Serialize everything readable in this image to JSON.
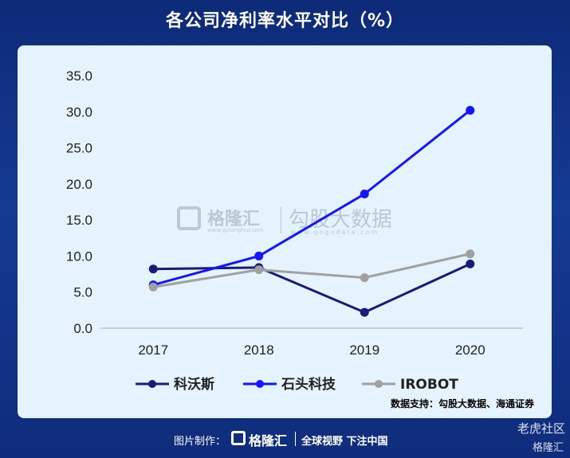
{
  "header": {
    "title": "各公司净利率水平对比（%）"
  },
  "chart_data": {
    "type": "line",
    "title": "各公司净利率水平对比（%）",
    "categories": [
      "2017",
      "2018",
      "2019",
      "2020"
    ],
    "y_ticks": [
      "0.0",
      "5.0",
      "10.0",
      "15.0",
      "20.0",
      "25.0",
      "30.0",
      "35.0"
    ],
    "ylim": [
      0,
      35
    ],
    "grid": false,
    "legend_position": "bottom",
    "series": [
      {
        "name": "科沃斯",
        "values": [
          8.2,
          8.4,
          2.2,
          8.9
        ],
        "color": "#1a1a7a"
      },
      {
        "name": "石头科技",
        "values": [
          6.0,
          10.0,
          18.6,
          30.2
        ],
        "color": "#1414ff"
      },
      {
        "name": "IROBOT",
        "values": [
          5.7,
          8.1,
          7.0,
          10.3
        ],
        "color": "#a0a0a0"
      }
    ]
  },
  "source": "数据支持：勾股大数据、海通证券",
  "watermark": {
    "brand": "格隆汇",
    "brand_url": "www.gelonghui.com",
    "gogu": "勾股大数据",
    "gogu_url": "www.gogudata.com"
  },
  "footer": {
    "made_by": "图片制作：",
    "brand": "格隆汇",
    "slogan": "全球视野 下注中国"
  },
  "corner_watermark": {
    "line1": "老虎社区",
    "line2": "格隆汇"
  }
}
